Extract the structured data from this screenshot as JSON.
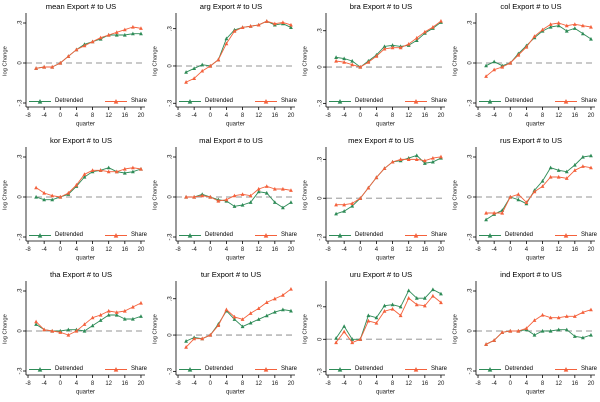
{
  "legend": {
    "detrended": "Detrended",
    "share": "Share"
  },
  "colors": {
    "detrended": "#2e8b57",
    "share": "#f4613c",
    "zero_line": "#ababab",
    "axis": "#000000",
    "tick_text": "#1a1a1a"
  },
  "axis": {
    "x_label": "quarter",
    "y_label": "log Change",
    "x_ticks": [
      -8,
      -4,
      0,
      4,
      8,
      12,
      16,
      20
    ],
    "x_range": [
      -8.5,
      21
    ],
    "y_ticks": [
      0.3,
      0,
      -0.3
    ],
    "y_tick_labels": [
      ".3",
      "0",
      "-.3"
    ]
  },
  "chart_data": [
    {
      "type": "line",
      "title": "mean Export # to US",
      "x": [
        -6,
        -4,
        -2,
        0,
        2,
        4,
        6,
        8,
        10,
        12,
        14,
        16,
        18,
        20
      ],
      "ylim": [
        -0.33,
        0.36
      ],
      "series": [
        {
          "name": "Detrended",
          "values": [
            -0.04,
            -0.03,
            -0.03,
            0.0,
            0.05,
            0.1,
            0.14,
            0.16,
            0.18,
            0.21,
            0.21,
            0.21,
            0.22,
            0.22
          ]
        },
        {
          "name": "Share",
          "values": [
            -0.04,
            -0.03,
            -0.03,
            0.0,
            0.05,
            0.1,
            0.13,
            0.16,
            0.19,
            0.21,
            0.23,
            0.25,
            0.27,
            0.26
          ]
        }
      ]
    },
    {
      "type": "line",
      "title": "arg Export # to US",
      "x": [
        -6,
        -4,
        -2,
        0,
        2,
        4,
        6,
        8,
        10,
        12,
        14,
        16,
        18,
        20
      ],
      "ylim": [
        -0.33,
        0.41
      ],
      "series": [
        {
          "name": "Detrended",
          "values": [
            -0.05,
            -0.02,
            0.01,
            0.0,
            0.05,
            0.22,
            0.29,
            0.31,
            0.32,
            0.33,
            0.36,
            0.33,
            0.34,
            0.31
          ]
        },
        {
          "name": "Share",
          "values": [
            -0.13,
            -0.1,
            -0.04,
            0.0,
            0.05,
            0.18,
            0.28,
            0.31,
            0.32,
            0.33,
            0.36,
            0.34,
            0.35,
            0.33
          ]
        }
      ]
    },
    {
      "type": "line",
      "title": "bra Export # to US",
      "x": [
        -6,
        -4,
        -2,
        0,
        2,
        4,
        6,
        8,
        10,
        12,
        14,
        16,
        18,
        20
      ],
      "ylim": [
        -0.33,
        0.43
      ],
      "series": [
        {
          "name": "Detrended",
          "values": [
            0.08,
            0.07,
            0.05,
            0.0,
            0.05,
            0.1,
            0.17,
            0.18,
            0.17,
            0.18,
            0.22,
            0.28,
            0.32,
            0.37
          ]
        },
        {
          "name": "Share",
          "values": [
            0.05,
            0.04,
            0.02,
            0.0,
            0.04,
            0.09,
            0.15,
            0.16,
            0.16,
            0.19,
            0.24,
            0.29,
            0.33,
            0.38
          ]
        }
      ]
    },
    {
      "type": "line",
      "title": "col Export # to US",
      "x": [
        -6,
        -4,
        -2,
        0,
        2,
        4,
        6,
        8,
        10,
        12,
        14,
        16,
        18,
        20
      ],
      "ylim": [
        -0.33,
        0.36
      ],
      "series": [
        {
          "name": "Detrended",
          "values": [
            -0.02,
            0.01,
            -0.02,
            0.0,
            0.07,
            0.13,
            0.19,
            0.24,
            0.27,
            0.28,
            0.24,
            0.26,
            0.22,
            0.18
          ]
        },
        {
          "name": "Share",
          "values": [
            -0.1,
            -0.05,
            -0.03,
            0.0,
            0.06,
            0.12,
            0.2,
            0.25,
            0.29,
            0.3,
            0.28,
            0.29,
            0.28,
            0.27
          ]
        }
      ]
    },
    {
      "type": "line",
      "title": "kor Export # to US",
      "x": [
        -6,
        -4,
        -2,
        0,
        2,
        4,
        6,
        8,
        10,
        12,
        14,
        16,
        18,
        20
      ],
      "ylim": [
        -0.33,
        0.36
      ],
      "series": [
        {
          "name": "Detrended",
          "values": [
            0.0,
            -0.02,
            -0.02,
            0.0,
            0.02,
            0.08,
            0.15,
            0.19,
            0.2,
            0.22,
            0.19,
            0.18,
            0.19,
            0.21
          ]
        },
        {
          "name": "Share",
          "values": [
            0.07,
            0.03,
            0.01,
            0.0,
            0.03,
            0.09,
            0.17,
            0.2,
            0.2,
            0.19,
            0.19,
            0.21,
            0.22,
            0.21
          ]
        }
      ]
    },
    {
      "type": "line",
      "title": "mal Export # to US",
      "x": [
        -6,
        -4,
        -2,
        0,
        2,
        4,
        6,
        8,
        10,
        12,
        14,
        16,
        18,
        20
      ],
      "ylim": [
        -0.33,
        0.36
      ],
      "series": [
        {
          "name": "Detrended",
          "values": [
            0.0,
            0.0,
            0.02,
            0.0,
            -0.02,
            -0.03,
            -0.07,
            -0.06,
            -0.04,
            0.04,
            0.03,
            -0.04,
            -0.08,
            -0.04
          ]
        },
        {
          "name": "Share",
          "values": [
            0.0,
            0.0,
            0.01,
            0.0,
            -0.03,
            -0.02,
            0.01,
            0.02,
            0.01,
            0.06,
            0.08,
            0.06,
            0.06,
            0.05
          ]
        }
      ]
    },
    {
      "type": "line",
      "title": "mex Export # to US",
      "x": [
        -6,
        -4,
        -2,
        0,
        2,
        4,
        6,
        8,
        10,
        12,
        14,
        16,
        18,
        20
      ],
      "ylim": [
        -0.33,
        0.38
      ],
      "series": [
        {
          "name": "Detrended",
          "values": [
            -0.12,
            -0.1,
            -0.06,
            0.0,
            0.08,
            0.16,
            0.23,
            0.28,
            0.29,
            0.31,
            0.33,
            0.27,
            0.28,
            0.31
          ]
        },
        {
          "name": "Share",
          "values": [
            -0.05,
            -0.05,
            -0.04,
            0.0,
            0.08,
            0.16,
            0.23,
            0.28,
            0.3,
            0.3,
            0.3,
            0.29,
            0.31,
            0.32
          ]
        }
      ]
    },
    {
      "type": "line",
      "title": "rus Export # to US",
      "x": [
        -6,
        -4,
        -2,
        0,
        2,
        4,
        6,
        8,
        10,
        12,
        14,
        16,
        18,
        20
      ],
      "ylim": [
        -0.33,
        0.36
      ],
      "series": [
        {
          "name": "Detrended",
          "values": [
            -0.17,
            -0.13,
            -0.1,
            0.0,
            -0.02,
            -0.05,
            0.05,
            0.12,
            0.22,
            0.2,
            0.19,
            0.24,
            0.3,
            0.31
          ]
        },
        {
          "name": "Share",
          "values": [
            -0.12,
            -0.12,
            -0.12,
            0.0,
            0.02,
            -0.04,
            0.04,
            0.08,
            0.15,
            0.15,
            0.14,
            0.2,
            0.23,
            0.22
          ]
        }
      ]
    },
    {
      "type": "line",
      "title": "tha Export # to US",
      "x": [
        -6,
        -4,
        -2,
        0,
        2,
        4,
        6,
        8,
        10,
        12,
        14,
        16,
        18,
        20
      ],
      "ylim": [
        -0.33,
        0.36
      ],
      "series": [
        {
          "name": "Detrended",
          "values": [
            0.05,
            0.01,
            0.0,
            0.0,
            0.01,
            0.01,
            0.0,
            0.04,
            0.08,
            0.12,
            0.12,
            0.09,
            0.09,
            0.11
          ]
        },
        {
          "name": "Share",
          "values": [
            0.07,
            0.01,
            0.0,
            -0.01,
            -0.03,
            0.0,
            0.05,
            0.1,
            0.12,
            0.15,
            0.14,
            0.15,
            0.18,
            0.21
          ]
        }
      ]
    },
    {
      "type": "line",
      "title": "tur Export # to US",
      "x": [
        -6,
        -4,
        -2,
        0,
        2,
        4,
        6,
        8,
        10,
        12,
        14,
        16,
        18,
        20
      ],
      "ylim": [
        -0.33,
        0.43
      ],
      "series": [
        {
          "name": "Detrended",
          "values": [
            -0.05,
            -0.02,
            -0.03,
            0.0,
            0.09,
            0.2,
            0.13,
            0.07,
            0.1,
            0.13,
            0.16,
            0.19,
            0.21,
            0.2
          ]
        },
        {
          "name": "Share",
          "values": [
            -0.1,
            -0.03,
            -0.03,
            0.0,
            0.08,
            0.21,
            0.15,
            0.13,
            0.18,
            0.22,
            0.27,
            0.3,
            0.33,
            0.38
          ]
        }
      ]
    },
    {
      "type": "line",
      "title": "uru Export # to US",
      "x": [
        -6,
        -4,
        -2,
        0,
        2,
        4,
        6,
        8,
        10,
        12,
        14,
        16,
        18,
        20
      ],
      "ylim": [
        -0.33,
        0.52
      ],
      "series": [
        {
          "name": "Detrended",
          "values": [
            0.01,
            0.12,
            0.0,
            0.0,
            0.22,
            0.2,
            0.31,
            0.32,
            0.3,
            0.45,
            0.38,
            0.38,
            0.46,
            0.42
          ]
        },
        {
          "name": "Share",
          "values": [
            -0.03,
            0.07,
            -0.03,
            0.0,
            0.17,
            0.15,
            0.26,
            0.28,
            0.22,
            0.38,
            0.32,
            0.31,
            0.4,
            0.34
          ]
        }
      ]
    },
    {
      "type": "line",
      "title": "ind Export # to US",
      "x": [
        -6,
        -4,
        -2,
        0,
        2,
        4,
        6,
        8,
        10,
        12,
        14,
        16,
        18,
        20
      ],
      "ylim": [
        -0.33,
        0.36
      ],
      "series": [
        {
          "name": "Detrended",
          "values": [
            -0.1,
            -0.07,
            -0.01,
            0.0,
            0.0,
            0.01,
            -0.03,
            0.0,
            0.0,
            0.01,
            0.01,
            -0.04,
            -0.05,
            -0.03
          ]
        },
        {
          "name": "Share",
          "values": [
            -0.1,
            -0.07,
            -0.01,
            0.0,
            0.0,
            0.02,
            0.08,
            0.12,
            0.1,
            0.1,
            0.11,
            0.11,
            0.14,
            0.16
          ]
        }
      ]
    }
  ]
}
